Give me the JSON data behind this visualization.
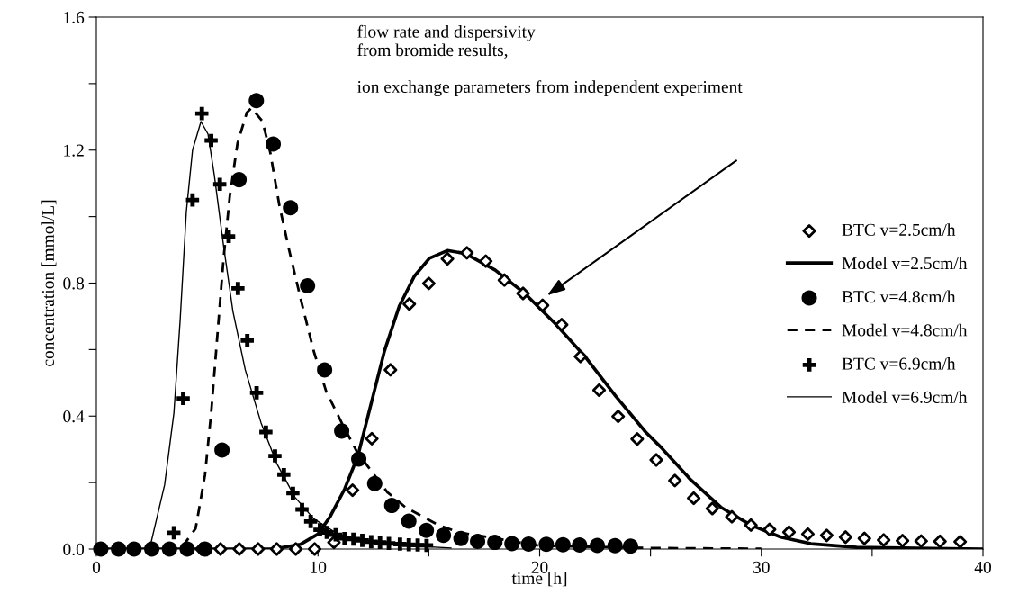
{
  "chart_data": {
    "type": "line",
    "xlabel": "time [h]",
    "ylabel": "concentration [mmol/L]",
    "xlim": [
      0,
      40
    ],
    "ylim": [
      0,
      1.6
    ],
    "xticks": [
      0,
      {
        "value": 5,
        "label": null
      },
      10,
      {
        "value": 15,
        "label": null
      },
      20,
      {
        "value": 25,
        "label": null
      },
      30,
      {
        "value": 35,
        "label": null
      },
      40
    ],
    "yticks": [
      {
        "value": 0,
        "label": "0.0"
      },
      {
        "value": 0.2,
        "label": null
      },
      {
        "value": 0.4,
        "label": "0.4"
      },
      {
        "value": 0.6,
        "label": null
      },
      {
        "value": 0.8,
        "label": "0.8"
      },
      {
        "value": 1.0,
        "label": null
      },
      {
        "value": 1.2,
        "label": "1.2"
      },
      {
        "value": 1.4,
        "label": null
      },
      {
        "value": 1.6,
        "label": "1.6"
      }
    ],
    "grid": false,
    "legend": "right",
    "annotations": [
      "flow rate and dispersivity\nfrom bromide results,\n\nion exchange parameters from independent experiment"
    ],
    "series": [
      {
        "name": "BTC v=2.5cm/h",
        "type": "scatter",
        "marker": "diamond",
        "color": "#000000",
        "x": [
          4.75,
          5.6,
          6.45,
          7.3,
          8.14,
          9.0,
          9.85,
          10.72,
          11.56,
          12.43,
          13.27,
          14.12,
          15.0,
          15.84,
          16.72,
          17.57,
          18.41,
          19.25,
          20.13,
          20.99,
          21.84,
          22.68,
          23.54,
          24.4,
          25.26,
          26.1,
          26.95,
          27.79,
          28.67,
          29.53,
          30.37,
          31.25,
          32.1,
          32.95,
          33.8,
          34.65,
          35.52,
          36.37,
          37.21,
          38.06,
          38.97
        ],
        "values": [
          0,
          0,
          0,
          0,
          0,
          0,
          0,
          0.02,
          0.177,
          0.332,
          0.539,
          0.737,
          0.799,
          0.873,
          0.891,
          0.866,
          0.809,
          0.769,
          0.733,
          0.675,
          0.579,
          0.478,
          0.399,
          0.331,
          0.268,
          0.206,
          0.153,
          0.122,
          0.097,
          0.072,
          0.059,
          0.051,
          0.045,
          0.041,
          0.036,
          0.032,
          0.027,
          0.025,
          0.024,
          0.023,
          0.022
        ]
      },
      {
        "name": "Model v=2.5cm/h",
        "line_style": "solid",
        "color": "#000000",
        "x": [
          0,
          8.0,
          9.2,
          10.0,
          10.56,
          11.2,
          11.8,
          12.45,
          13.0,
          13.67,
          14.35,
          15.03,
          15.84,
          16.65,
          18.0,
          19.36,
          20.72,
          22.07,
          23.43,
          24.78,
          25.46,
          26.82,
          28.17,
          29.52,
          30.88,
          32.24,
          34.3,
          40
        ],
        "values": [
          0,
          0,
          0.014,
          0.045,
          0.099,
          0.18,
          0.28,
          0.451,
          0.596,
          0.731,
          0.821,
          0.875,
          0.898,
          0.889,
          0.839,
          0.767,
          0.677,
          0.577,
          0.46,
          0.352,
          0.307,
          0.208,
          0.126,
          0.072,
          0.036,
          0.016,
          0.005,
          0
        ]
      },
      {
        "name": "BTC v=4.8cm/h",
        "type": "scatter",
        "marker": "circle",
        "color": "#000000",
        "x": [
          0.2,
          1.0,
          1.7,
          2.5,
          3.3,
          4.1,
          4.9,
          5.67,
          6.44,
          7.22,
          7.98,
          8.76,
          9.53,
          10.3,
          11.07,
          11.84,
          12.56,
          13.33,
          14.1,
          14.89,
          15.66,
          16.45,
          17.2,
          17.98,
          18.75,
          19.5,
          20.3,
          21.05,
          21.8,
          22.6,
          23.4,
          24.1
        ],
        "values": [
          0,
          0,
          0,
          0,
          0,
          0,
          0,
          0.298,
          1.111,
          1.349,
          1.218,
          1.027,
          0.792,
          0.539,
          0.355,
          0.271,
          0.197,
          0.131,
          0.084,
          0.056,
          0.041,
          0.032,
          0.023,
          0.02,
          0.016,
          0.015,
          0.014,
          0.013,
          0.012,
          0.011,
          0.01,
          0.009
        ]
      },
      {
        "name": "Model v=4.8cm/h",
        "line_style": "dashed",
        "color": "#000000",
        "x": [
          0,
          3.8,
          4.48,
          4.9,
          5.18,
          5.46,
          5.74,
          6.02,
          6.37,
          6.79,
          7.0,
          7.5,
          7.85,
          8.26,
          8.69,
          9.25,
          9.81,
          10.37,
          11.07,
          11.77,
          13.13,
          13.94,
          15.43,
          16.38,
          20,
          25,
          30
        ],
        "values": [
          0,
          0,
          0.062,
          0.222,
          0.409,
          0.642,
          0.874,
          1.061,
          1.221,
          1.313,
          1.327,
          1.286,
          1.192,
          1.033,
          0.902,
          0.744,
          0.595,
          0.474,
          0.38,
          0.291,
          0.171,
          0.126,
          0.072,
          0.05,
          0.01,
          0.003,
          0.001
        ]
      },
      {
        "name": "BTC v=6.9cm/h",
        "type": "scatter",
        "marker": "cross",
        "color": "#000000",
        "x": [
          3.5,
          3.92,
          4.34,
          4.76,
          5.18,
          5.57,
          5.97,
          6.39,
          6.81,
          7.23,
          7.65,
          8.06,
          8.46,
          8.87,
          9.28,
          9.67,
          10.09,
          10.4,
          10.8,
          11.2,
          11.6,
          12.0,
          12.4,
          12.8,
          13.2,
          13.7,
          14.1,
          14.5,
          14.9
        ],
        "values": [
          0.049,
          0.453,
          1.05,
          1.31,
          1.229,
          1.097,
          0.94,
          0.784,
          0.627,
          0.47,
          0.352,
          0.28,
          0.224,
          0.168,
          0.119,
          0.083,
          0.058,
          0.05,
          0.043,
          0.032,
          0.03,
          0.026,
          0.022,
          0.02,
          0.017,
          0.015,
          0.013,
          0.012,
          0.011
        ]
      },
      {
        "name": "Model v=6.9cm/h",
        "line_style": "solid",
        "color": "#000000",
        "x": [
          0,
          2.4,
          3.08,
          3.5,
          3.78,
          4.06,
          4.34,
          4.72,
          5.04,
          5.32,
          5.74,
          6.16,
          6.72,
          7.43,
          8.13,
          8.96,
          9.81,
          10.93,
          12.33,
          14.0,
          16.0
        ],
        "values": [
          0,
          0,
          0.193,
          0.41,
          0.688,
          1.015,
          1.2,
          1.286,
          1.248,
          1.126,
          0.912,
          0.716,
          0.539,
          0.38,
          0.259,
          0.156,
          0.091,
          0.044,
          0.021,
          0.01,
          0.003
        ]
      }
    ]
  }
}
